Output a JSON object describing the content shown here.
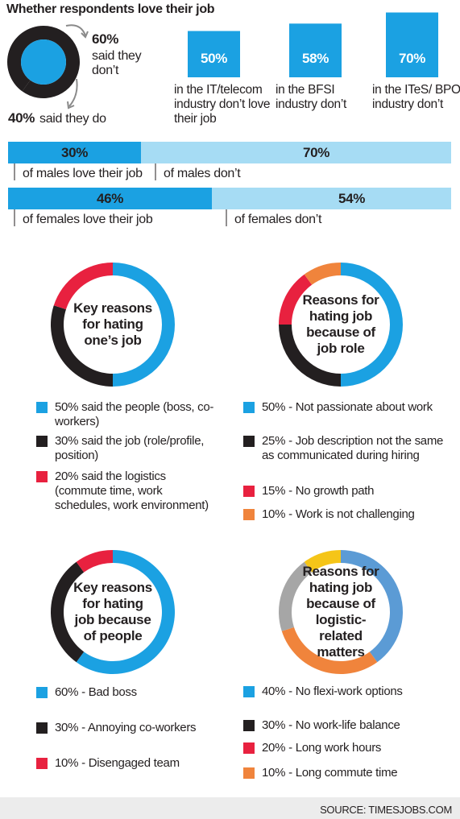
{
  "title": "Whether respondents love their job",
  "source": "SOURCE: TIMESJOBS.COM",
  "chart_data": [
    {
      "type": "donut",
      "categories": [
        "said they don’t",
        "said they do"
      ],
      "values": [
        60,
        40
      ],
      "value_labels": [
        "60%",
        "40%"
      ],
      "colors": [
        "#231f20",
        "#231f20"
      ],
      "center_color": "#1ba1e2"
    },
    {
      "type": "bar",
      "categories": [
        "in the IT/telecom industry don’t love their job",
        "in the BFSI industry don’t",
        "in the ITeS/ BPO industry don’t"
      ],
      "values": [
        50,
        58,
        70
      ],
      "value_labels": [
        "50%",
        "58%",
        "70%"
      ],
      "color": "#1ba1e2"
    },
    {
      "type": "stacked-bar",
      "series": [
        {
          "name": "of males love their job",
          "values": [
            30
          ],
          "value_labels": [
            "30%"
          ],
          "color": "#1ba1e2"
        },
        {
          "name": "of males don’t",
          "values": [
            70
          ],
          "value_labels": [
            "70%"
          ],
          "color": "#a6dcf4"
        }
      ]
    },
    {
      "type": "stacked-bar",
      "series": [
        {
          "name": "of females love their job",
          "values": [
            46
          ],
          "value_labels": [
            "46%"
          ],
          "color": "#1ba1e2"
        },
        {
          "name": "of females don’t",
          "values": [
            54
          ],
          "value_labels": [
            "54%"
          ],
          "color": "#a6dcf4"
        }
      ]
    },
    {
      "type": "donut",
      "title": "Key reasons for hating one’s job",
      "categories": [
        "said the people (boss, co-workers)",
        "said the job (role/profile, position)",
        "said the logistics (commute time, work schedules, work environment)"
      ],
      "values": [
        50,
        30,
        20
      ],
      "value_labels": [
        "50%",
        "30%",
        "20%"
      ],
      "colors": [
        "#1ba1e2",
        "#231f20",
        "#e8213f"
      ]
    },
    {
      "type": "donut",
      "title": "Reasons for hating job because of job role",
      "categories": [
        "- Not passionate about work",
        "- Job description not the same as communicated during hiring",
        "- No growth path",
        "- Work is not challenging"
      ],
      "values": [
        50,
        25,
        15,
        10
      ],
      "value_labels": [
        "50%",
        "25%",
        "15%",
        "10%"
      ],
      "colors": [
        "#1ba1e2",
        "#231f20",
        "#e8213f",
        "#f0843c"
      ]
    },
    {
      "type": "donut",
      "title": "Key reasons for hating job because of people",
      "categories": [
        "- Bad boss",
        "- Annoying co-workers",
        "- Disengaged team"
      ],
      "values": [
        60,
        30,
        10
      ],
      "value_labels": [
        "60%",
        "30%",
        "10%"
      ],
      "colors": [
        "#1ba1e2",
        "#231f20",
        "#e8213f"
      ]
    },
    {
      "type": "donut",
      "title": "Reasons for hating job because of logistic-related matters",
      "categories": [
        "- No flexi-work options",
        "- No work-life balance",
        "- Long work hours",
        "- Long commute time"
      ],
      "values": [
        40,
        30,
        20,
        10
      ],
      "value_labels": [
        "40%",
        "30%",
        "20%",
        "10%"
      ],
      "colors": [
        "#5b9bd5",
        "#f0843c",
        "#a6a6a6",
        "#f5c518"
      ],
      "legend_colors": [
        "#1ba1e2",
        "#231f20",
        "#e8213f",
        "#f0843c"
      ]
    }
  ]
}
